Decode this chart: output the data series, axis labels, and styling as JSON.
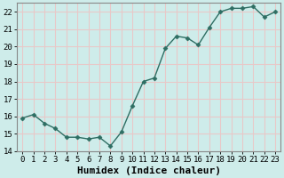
{
  "x": [
    0,
    1,
    2,
    3,
    4,
    5,
    6,
    7,
    8,
    9,
    10,
    11,
    12,
    13,
    14,
    15,
    16,
    17,
    18,
    19,
    20,
    21,
    22,
    23
  ],
  "y": [
    15.9,
    16.1,
    15.6,
    15.3,
    14.8,
    14.8,
    14.7,
    14.8,
    14.3,
    15.1,
    16.6,
    18.0,
    18.2,
    19.9,
    20.6,
    20.5,
    20.1,
    21.1,
    22.0,
    22.2,
    22.2,
    22.3,
    21.7,
    22.0
  ],
  "line_color": "#2e6e63",
  "marker": "D",
  "marker_size": 2.5,
  "bg_color": "#ceecea",
  "grid_color": "#e8c8c8",
  "xlabel": "Humidex (Indice chaleur)",
  "ylim": [
    14,
    22.5
  ],
  "xlim": [
    -0.5,
    23.5
  ],
  "yticks": [
    14,
    15,
    16,
    17,
    18,
    19,
    20,
    21,
    22
  ],
  "xticks": [
    0,
    1,
    2,
    3,
    4,
    5,
    6,
    7,
    8,
    9,
    10,
    11,
    12,
    13,
    14,
    15,
    16,
    17,
    18,
    19,
    20,
    21,
    22,
    23
  ],
  "xtick_labels": [
    "0",
    "1",
    "2",
    "3",
    "4",
    "5",
    "6",
    "7",
    "8",
    "9",
    "10",
    "11",
    "12",
    "13",
    "14",
    "15",
    "16",
    "17",
    "18",
    "19",
    "20",
    "21",
    "22",
    "23"
  ],
  "tick_fontsize": 6.5,
  "xlabel_fontsize": 8,
  "tick_color": "#000000",
  "spine_color": "#888888"
}
